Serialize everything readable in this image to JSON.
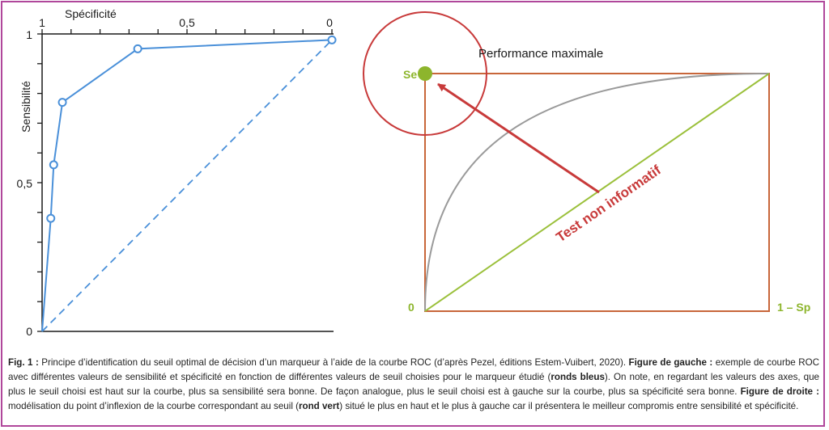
{
  "colors": {
    "border": "#b0479b",
    "curve_blue": "#4a90d9",
    "diagonal_green": "#9bc03b",
    "red": "#c83a3a",
    "frame_orange": "#c8663a",
    "gray_curve": "#9a9a9a"
  },
  "chart_data": [
    {
      "type": "line",
      "title": "",
      "xlabel": "Spécificité",
      "ylabel": "Sensibilité",
      "x_axis_position": "top",
      "x_reversed": true,
      "xlim": [
        0,
        1
      ],
      "ylim": [
        0,
        1
      ],
      "x_tick_labels": [
        "1",
        "0,5",
        "0"
      ],
      "y_tick_labels": [
        "1",
        "0,5",
        "0"
      ],
      "series": [
        {
          "style": "solid-with-open-markers",
          "x": [
            1.0,
            0.97,
            0.96,
            0.93,
            0.67,
            0.0
          ],
          "y": [
            0.0,
            0.38,
            0.56,
            0.77,
            0.95,
            0.98
          ]
        },
        {
          "style": "dashed",
          "x": [
            1.0,
            0.0
          ],
          "y": [
            0.0,
            0.98
          ]
        }
      ]
    },
    {
      "type": "line",
      "labels": {
        "origin": "0",
        "x_end": "1 – Sp",
        "y_top": "Se",
        "circle_label": "Performance maximale",
        "diagonal_label": "Test non informatif"
      }
    }
  ],
  "caption": {
    "fig_label": "Fig. 1 :",
    "t1": " Principe d’identification du seuil optimal de décision d’un marqueur à l’aide de la courbe ROC (d’après Pezel, éditions Estem-Vuibert, 2020). ",
    "b1": "Figure de gauche :",
    "t2": " exemple de courbe ROC avec différentes valeurs de sensibilité et spécificité en fonction de différentes valeurs de seuil choisies pour le marqueur étudié (",
    "b2": "ronds bleus",
    "t3": "). On note, en regardant les valeurs des axes, que plus le seuil choisi est haut sur la courbe, plus sa sensibilité sera bonne. De façon analogue, plus le seuil choisi est à gauche sur la courbe, plus sa spécificité sera bonne. ",
    "b3": "Figure de droite :",
    "t4": " modélisation du point d’inflexion de la courbe correspondant au seuil (",
    "b4": "rond vert",
    "t5": ") situé le plus en haut et le plus à gauche car il présentera le meilleur compromis entre sensibilité et spécificité."
  }
}
